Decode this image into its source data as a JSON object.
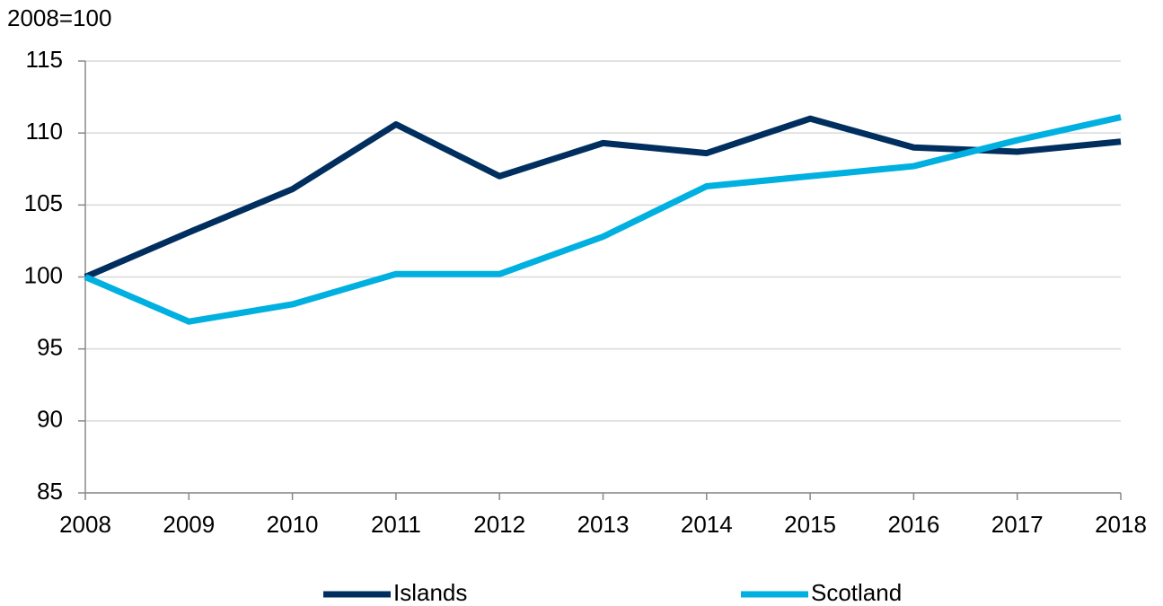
{
  "chart_data": {
    "type": "line",
    "y_label": "2008=100",
    "x": [
      2008,
      2009,
      2010,
      2011,
      2012,
      2013,
      2014,
      2015,
      2016,
      2017,
      2018
    ],
    "xlim": [
      2008,
      2018
    ],
    "xticks": [
      2008,
      2009,
      2010,
      2011,
      2012,
      2013,
      2014,
      2015,
      2016,
      2017,
      2018
    ],
    "ylim": [
      85,
      115
    ],
    "yticks": [
      85,
      90,
      95,
      100,
      105,
      110,
      115
    ],
    "grid": true,
    "legend": "bottom",
    "series": [
      {
        "name": "Islands",
        "color": "#002f5f",
        "values": [
          100,
          103.1,
          106.1,
          110.6,
          107.0,
          109.3,
          108.6,
          111.0,
          109.0,
          108.7,
          109.4
        ]
      },
      {
        "name": "Scotland",
        "color": "#00b0e0",
        "values": [
          100,
          96.9,
          98.1,
          100.2,
          100.2,
          102.8,
          106.3,
          107.0,
          107.7,
          109.5,
          111.1
        ]
      }
    ]
  }
}
